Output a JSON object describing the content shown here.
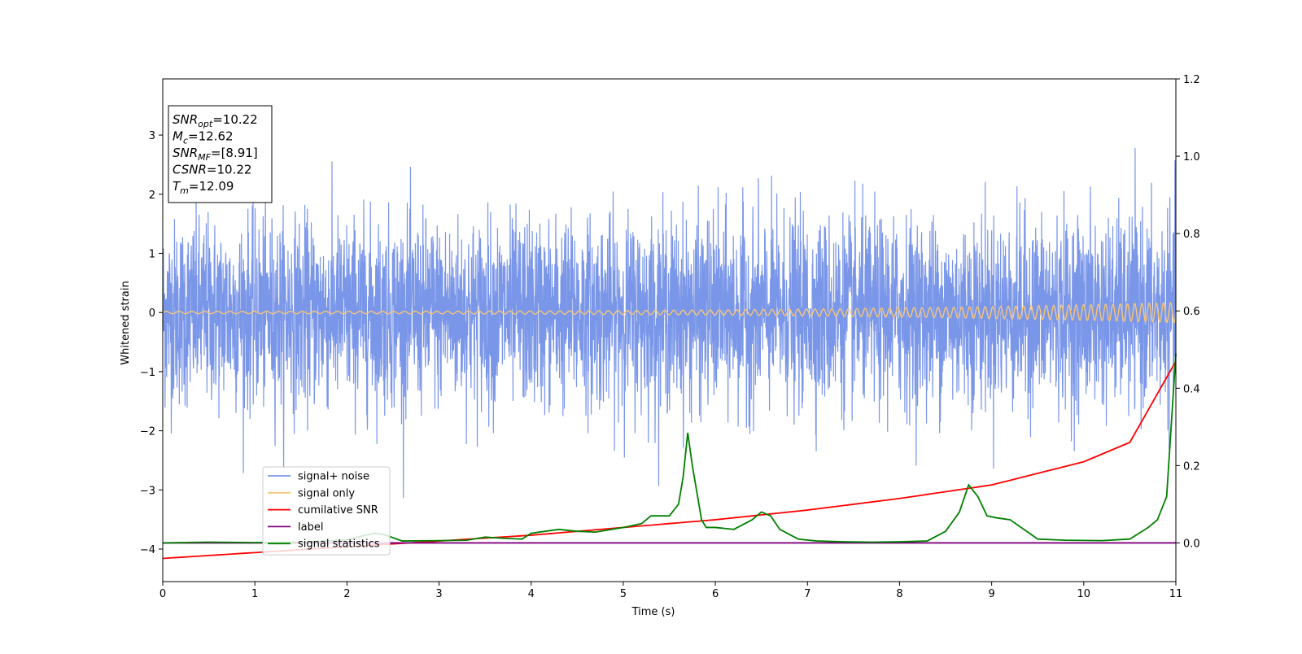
{
  "chart_data": {
    "type": "line",
    "xlabel": "Time (s)",
    "ylabel": "Whitened strain",
    "xlim": [
      0,
      11
    ],
    "ylim_left": [
      -4.55,
      3.95
    ],
    "ylim_right": [
      -0.1,
      1.2
    ],
    "x_ticks": [
      0,
      1,
      2,
      3,
      4,
      5,
      6,
      7,
      8,
      9,
      10,
      11
    ],
    "y_ticks_left": [
      -4,
      -3,
      -2,
      -1,
      0,
      1,
      2,
      3
    ],
    "y_ticks_right": [
      0.0,
      0.2,
      0.4,
      0.6,
      0.8,
      1.0,
      1.2
    ],
    "grid": false,
    "legend_placement": "lower-left",
    "info_box": [
      {
        "base": "SNR",
        "sub": "opt",
        "value": "=10.22"
      },
      {
        "base": "M",
        "sub": "c",
        "value": "=12.62"
      },
      {
        "base": "SNR",
        "sub": "MF",
        "value": "=[8.91]"
      },
      {
        "base": "CSNR",
        "sub": "",
        "value": "=10.22"
      },
      {
        "base": "T",
        "sub": "m",
        "value": "=12.09"
      }
    ],
    "series": [
      {
        "name": "signal+ noise",
        "axis": "left",
        "color": "#7a96e8",
        "style": "noise",
        "sigma": 0.78,
        "clip": [
          -4.2,
          3.6
        ]
      },
      {
        "name": "signal only",
        "axis": "left",
        "color": "#f5c67a",
        "style": "chirp",
        "amplitude_start": 0.02,
        "amplitude_end": 0.17
      },
      {
        "name": "cumilative SNR",
        "axis": "right",
        "color": "#ff0000",
        "x": [
          0,
          1,
          2,
          3,
          4,
          5,
          6,
          7,
          8,
          9,
          10,
          10.5,
          11
        ],
        "y": [
          -0.04,
          -0.025,
          -0.01,
          0.005,
          0.02,
          0.04,
          0.06,
          0.085,
          0.115,
          0.15,
          0.21,
          0.26,
          0.47
        ]
      },
      {
        "name": "label",
        "axis": "right",
        "color": "#800080",
        "x": [
          0,
          11
        ],
        "y": [
          0,
          0
        ]
      },
      {
        "name": "signal statistics",
        "axis": "right",
        "color": "#008000",
        "x": [
          0,
          0.5,
          1,
          1.5,
          2,
          2.2,
          2.3,
          2.4,
          2.6,
          3,
          3.3,
          3.5,
          3.7,
          3.9,
          4.0,
          4.15,
          4.3,
          4.5,
          4.7,
          5.0,
          5.2,
          5.3,
          5.5,
          5.6,
          5.65,
          5.7,
          5.75,
          5.8,
          5.85,
          5.9,
          6.0,
          6.2,
          6.4,
          6.5,
          6.6,
          6.7,
          6.9,
          7.1,
          7.4,
          7.7,
          8.0,
          8.3,
          8.5,
          8.65,
          8.75,
          8.85,
          8.95,
          9.05,
          9.2,
          9.5,
          9.8,
          10.2,
          10.5,
          10.7,
          10.8,
          10.9,
          11.0
        ],
        "y": [
          0.0,
          0.002,
          0.001,
          0.002,
          0.008,
          0.02,
          0.025,
          0.022,
          0.005,
          0.006,
          0.007,
          0.015,
          0.012,
          0.01,
          0.025,
          0.03,
          0.035,
          0.03,
          0.028,
          0.04,
          0.05,
          0.07,
          0.07,
          0.1,
          0.17,
          0.285,
          0.2,
          0.13,
          0.06,
          0.04,
          0.04,
          0.035,
          0.06,
          0.08,
          0.07,
          0.035,
          0.01,
          0.005,
          0.003,
          0.002,
          0.003,
          0.005,
          0.03,
          0.08,
          0.15,
          0.12,
          0.07,
          0.065,
          0.06,
          0.01,
          0.007,
          0.006,
          0.01,
          0.04,
          0.06,
          0.12,
          0.49
        ]
      }
    ]
  }
}
